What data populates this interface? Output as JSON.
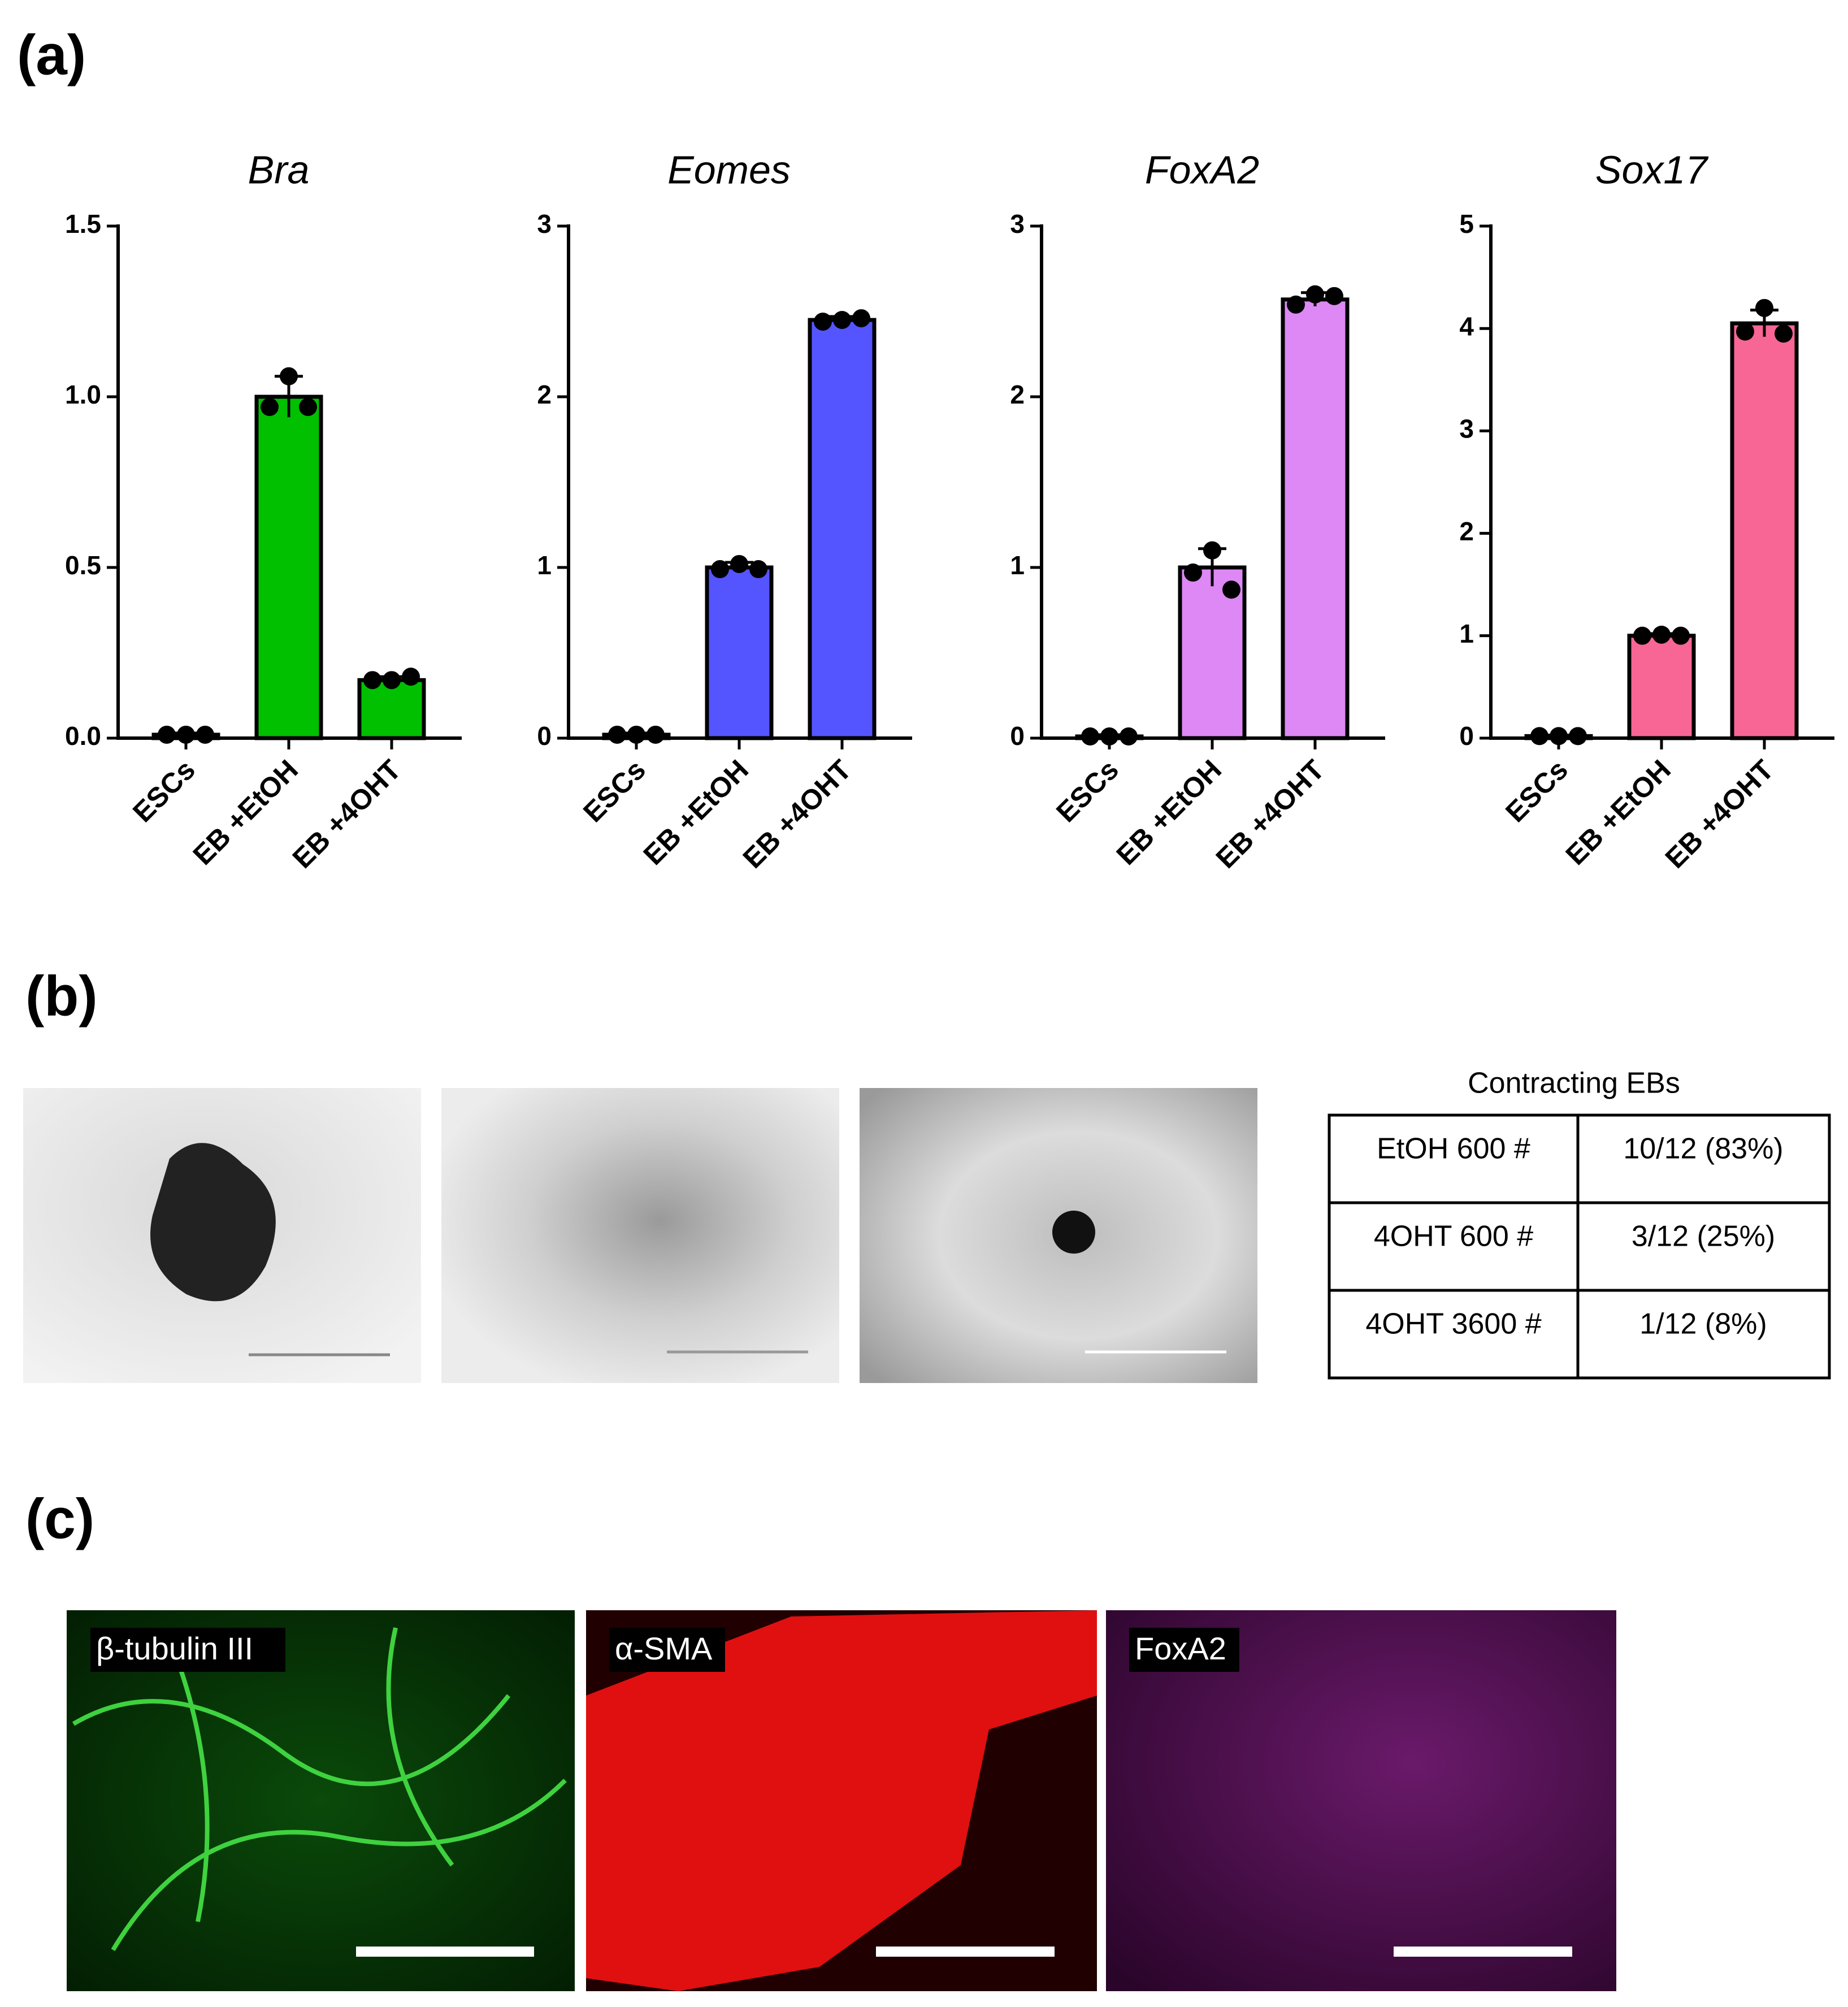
{
  "panels": [
    "(a)",
    "(b)",
    "(c)"
  ],
  "chart_data": [
    {
      "type": "bar",
      "title": "Bra",
      "categories": [
        "ESCs",
        "EB +EtOH",
        "EB +4OHT"
      ],
      "values": [
        0.01,
        1.0,
        0.17
      ],
      "errors": [
        0.005,
        0.06,
        0.01
      ],
      "points": [
        [
          0.01,
          0.01,
          0.01
        ],
        [
          0.97,
          1.06,
          0.97
        ],
        [
          0.17,
          0.17,
          0.18
        ]
      ],
      "color": "#00c000",
      "ylim": [
        0,
        1.5
      ],
      "yticks": [
        {
          "value": 0,
          "label": "0.0"
        },
        0.5,
        {
          "value": 1,
          "label": "1.0"
        },
        1.5
      ]
    },
    {
      "type": "bar",
      "title": "Eomes",
      "categories": [
        "ESCs",
        "EB +EtOH",
        "EB +4OHT"
      ],
      "values": [
        0.02,
        1.0,
        2.45
      ],
      "errors": [
        0.01,
        0.03,
        0.02
      ],
      "points": [
        [
          0.02,
          0.02,
          0.02
        ],
        [
          0.99,
          1.02,
          0.99
        ],
        [
          2.44,
          2.45,
          2.46
        ]
      ],
      "color": "#5555ff",
      "ylim": [
        0,
        3
      ],
      "yticks": [
        0,
        1,
        2,
        3
      ]
    },
    {
      "type": "bar",
      "title": "FoxA2",
      "categories": [
        "ESCs",
        "EB +EtOH",
        "EB +4OHT"
      ],
      "values": [
        0.01,
        1.0,
        2.57
      ],
      "errors": [
        0.01,
        0.11,
        0.04
      ],
      "points": [
        [
          0.01,
          0.01,
          0.01
        ],
        [
          0.97,
          1.1,
          0.87
        ],
        [
          2.54,
          2.6,
          2.59
        ]
      ],
      "color": "#dd88f5",
      "ylim": [
        0,
        3
      ],
      "yticks": [
        0,
        1,
        2,
        3
      ]
    },
    {
      "type": "bar",
      "title": "Sox17",
      "categories": [
        "ESCs",
        "EB +EtOH",
        "EB +4OHT"
      ],
      "values": [
        0.02,
        1.0,
        4.05
      ],
      "errors": [
        0.01,
        0.02,
        0.13
      ],
      "points": [
        [
          0.02,
          0.02,
          0.02
        ],
        [
          1.0,
          1.01,
          1.0
        ],
        [
          3.97,
          4.2,
          3.95
        ]
      ],
      "color": "#f76694",
      "ylim": [
        0,
        5
      ],
      "yticks": [
        0,
        1,
        2,
        3,
        4,
        5
      ]
    }
  ],
  "table": {
    "title": "Contracting EBs",
    "rows": [
      [
        "EtOH 600 #",
        "10/12 (83%)"
      ],
      [
        "4OHT 600 #",
        "3/12 (25%)"
      ],
      [
        "4OHT 3600 #",
        "1/12 (8%)"
      ]
    ]
  },
  "images": [
    "β-tubulin III",
    "α-SMA",
    "FoxA2"
  ]
}
